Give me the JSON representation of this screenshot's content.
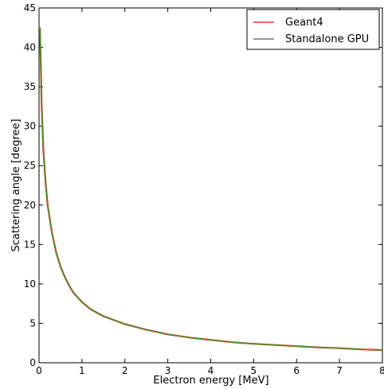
{
  "chart_data": {
    "type": "line",
    "xlabel": "Electron energy [MeV]",
    "ylabel": "Scattering angle [degree]",
    "xlim": [
      0,
      8
    ],
    "ylim": [
      0,
      45
    ],
    "xticks": [
      "0",
      "1",
      "2",
      "3",
      "4",
      "5",
      "6",
      "7",
      "8"
    ],
    "yticks": [
      "0",
      "5",
      "10",
      "15",
      "20",
      "25",
      "30",
      "35",
      "40",
      "45"
    ],
    "grid": false,
    "legend_position": "top-right",
    "series": [
      {
        "name": "Geant4",
        "color": "#ff2a2a",
        "x": [
          0.02,
          0.04,
          0.06,
          0.08,
          0.1,
          0.15,
          0.2,
          0.3,
          0.4,
          0.5,
          0.6,
          0.7,
          0.8,
          1.0,
          1.2,
          1.5,
          2.0,
          2.5,
          3.0,
          3.5,
          4.0,
          4.5,
          5.0,
          5.5,
          6.0,
          6.5,
          7.0,
          7.5,
          8.0
        ],
        "y": [
          42.5,
          38.0,
          33.0,
          30.0,
          27.0,
          23.0,
          20.0,
          16.5,
          14.0,
          12.2,
          10.9,
          9.8,
          8.9,
          7.7,
          6.8,
          5.9,
          4.9,
          4.2,
          3.6,
          3.2,
          2.9,
          2.6,
          2.4,
          2.25,
          2.1,
          1.95,
          1.85,
          1.7,
          1.6
        ]
      },
      {
        "name": "Standalone GPU",
        "color": "#2f2f2f",
        "x": [
          0.02,
          0.04,
          0.06,
          0.08,
          0.1,
          0.15,
          0.2,
          0.3,
          0.4,
          0.5,
          0.6,
          0.7,
          0.8,
          1.0,
          1.2,
          1.5,
          2.0,
          2.5,
          3.0,
          3.5,
          4.0,
          4.5,
          5.0,
          5.5,
          6.0,
          6.5,
          7.0,
          7.5,
          8.0
        ],
        "y": [
          42.5,
          38.0,
          33.0,
          30.0,
          27.0,
          23.0,
          20.0,
          16.5,
          14.0,
          12.2,
          10.9,
          9.8,
          8.9,
          7.7,
          6.8,
          5.9,
          4.9,
          4.2,
          3.6,
          3.2,
          2.9,
          2.6,
          2.4,
          2.25,
          2.1,
          1.95,
          1.85,
          1.7,
          1.6
        ]
      }
    ],
    "overlay_color": "#22b422"
  }
}
